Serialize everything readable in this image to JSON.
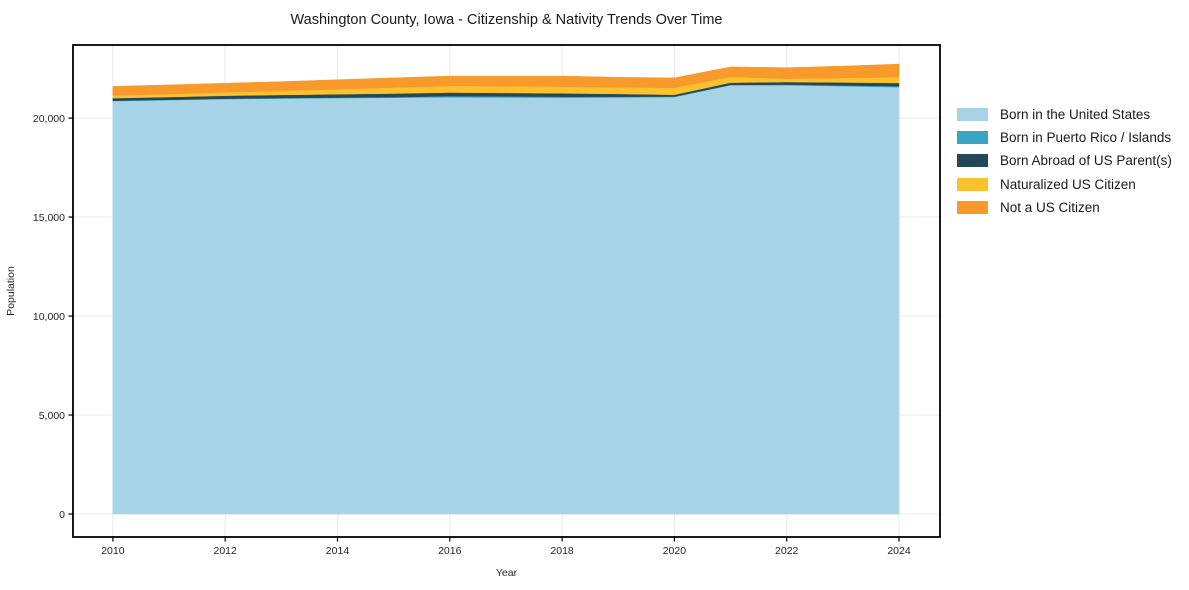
{
  "figure": {
    "title": "Washington County, Iowa - Citizenship & Nativity Trends Over Time"
  },
  "chart_data": {
    "type": "area",
    "stacked": true,
    "title": "Washington County, Iowa - Citizenship & Nativity Trends Over Time",
    "xlabel": "Year",
    "ylabel": "Population",
    "x": [
      2010,
      2011,
      2012,
      2013,
      2014,
      2015,
      2016,
      2017,
      2018,
      2019,
      2020,
      2021,
      2022,
      2023,
      2024
    ],
    "xticks": [
      2010,
      2012,
      2014,
      2016,
      2018,
      2020,
      2022,
      2024
    ],
    "yticks": [
      0,
      5000,
      10000,
      15000,
      20000
    ],
    "ytick_labels": [
      "0",
      "5,000",
      "10,000",
      "15,000",
      "20,000"
    ],
    "xlim": [
      2009.29,
      2024.73
    ],
    "ylim": [
      -1160,
      23690
    ],
    "grid": true,
    "grid_color": "#e9e9e9",
    "frame_color": "#000000",
    "legend_position": "right",
    "series": [
      {
        "name": "Born in the United States",
        "color": "#a7d3e6",
        "values": [
          20860,
          20910,
          20960,
          20990,
          21010,
          21030,
          21050,
          21040,
          21030,
          21040,
          21060,
          21660,
          21660,
          21610,
          21560
        ]
      },
      {
        "name": "Born in Puerto Rico / Islands",
        "color": "#3aa4c2",
        "values": [
          15,
          15,
          20,
          20,
          25,
          30,
          60,
          55,
          50,
          40,
          30,
          20,
          30,
          40,
          50
        ]
      },
      {
        "name": "Born Abroad of US Parent(s)",
        "color": "#24485a",
        "values": [
          130,
          140,
          150,
          160,
          170,
          180,
          180,
          175,
          170,
          140,
          90,
          110,
          130,
          150,
          160
        ]
      },
      {
        "name": "Naturalized US Citizen",
        "color": "#fcc22e",
        "values": [
          140,
          150,
          170,
          200,
          250,
          300,
          330,
          340,
          340,
          330,
          350,
          290,
          170,
          220,
          300
        ]
      },
      {
        "name": "Not a US Citizen",
        "color": "#f8992b",
        "values": [
          455,
          460,
          460,
          470,
          480,
          490,
          500,
          510,
          530,
          510,
          500,
          505,
          555,
          605,
          655
        ]
      }
    ]
  }
}
